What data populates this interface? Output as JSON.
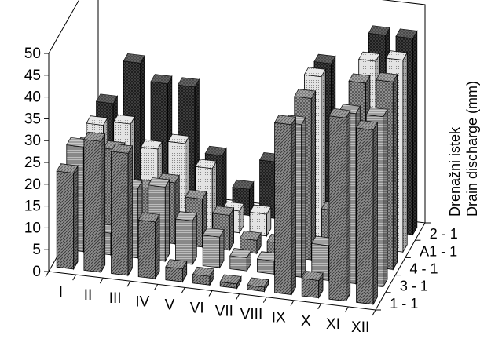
{
  "chart_data": {
    "type": "bar",
    "subtype": "3d-grouped-bar",
    "categories": [
      "I",
      "II",
      "III",
      "IV",
      "V",
      "VI",
      "VII",
      "VIII",
      "IX",
      "X",
      "XI",
      "XII"
    ],
    "series": [
      {
        "name": "1 - 1",
        "values": [
          22,
          30,
          28,
          13,
          3,
          2,
          1,
          1,
          39,
          4,
          42,
          40
        ]
      },
      {
        "name": "3 - 1",
        "values": [
          24,
          5,
          16,
          17,
          10,
          7,
          3,
          3,
          35,
          8,
          39,
          39
        ]
      },
      {
        "name": "4 - 1",
        "values": [
          20,
          20,
          12,
          14,
          11,
          8,
          3,
          3,
          37,
          12,
          42,
          43
        ]
      },
      {
        "name": "A1 - 1",
        "values": [
          21,
          22,
          17,
          19,
          14,
          5,
          5,
          2,
          38,
          12,
          43,
          44
        ]
      },
      {
        "name": "2 - 1",
        "values": [
          22,
          32,
          28,
          28,
          13,
          6,
          13,
          6,
          37,
          12,
          45,
          45
        ]
      }
    ],
    "yticks": [
      0,
      5,
      10,
      15,
      20,
      25,
      30,
      35,
      40,
      45,
      50
    ],
    "ylim": [
      0,
      50
    ],
    "zlabel_lines": [
      "Drenažni istek",
      "Drain discharge (mm)"
    ],
    "grid": false,
    "legend": "depth-axis"
  }
}
